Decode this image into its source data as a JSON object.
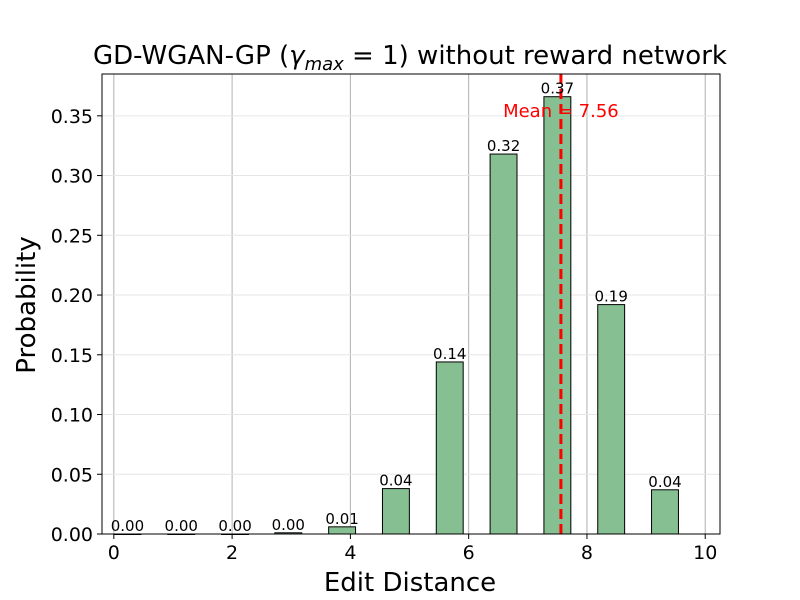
{
  "chart_data": {
    "type": "bar",
    "title_prefix": "GD-WGAN-GP (",
    "title_gamma": "γ",
    "title_sub": "max",
    "title_eq": " = 1",
    "title_suffix": ") without reward network",
    "xlabel": "Edit Distance",
    "ylabel": "Probability",
    "xlim": [
      -0.2,
      10.25
    ],
    "ylim": [
      0,
      0.385
    ],
    "xticks": [
      0,
      2,
      4,
      6,
      8,
      10
    ],
    "xtick_labels": [
      "0",
      "2",
      "4",
      "6",
      "8",
      "10"
    ],
    "yticks": [
      0.0,
      0.05,
      0.1,
      0.15,
      0.2,
      0.25,
      0.3,
      0.35
    ],
    "ytick_labels": [
      "0.00",
      "0.05",
      "0.10",
      "0.15",
      "0.20",
      "0.25",
      "0.30",
      "0.35"
    ],
    "bars": [
      {
        "x": 0.23,
        "value": 0.0,
        "label": "0.00"
      },
      {
        "x": 1.14,
        "value": 0.0,
        "label": "0.00"
      },
      {
        "x": 2.05,
        "value": 0.0,
        "label": "0.00"
      },
      {
        "x": 2.95,
        "value": 0.001,
        "label": "0.00"
      },
      {
        "x": 3.86,
        "value": 0.006,
        "label": "0.01"
      },
      {
        "x": 4.77,
        "value": 0.038,
        "label": "0.04"
      },
      {
        "x": 5.68,
        "value": 0.144,
        "label": "0.14"
      },
      {
        "x": 6.59,
        "value": 0.318,
        "label": "0.32"
      },
      {
        "x": 7.5,
        "value": 0.366,
        "label": "0.37"
      },
      {
        "x": 8.41,
        "value": 0.192,
        "label": "0.19"
      },
      {
        "x": 9.32,
        "value": 0.037,
        "label": "0.04"
      }
    ],
    "bar_width": 0.455,
    "mean": 7.56,
    "mean_label": "Mean = 7.56",
    "bar_color": "#86bf91",
    "mean_color": "#ff0000",
    "grid": true
  }
}
